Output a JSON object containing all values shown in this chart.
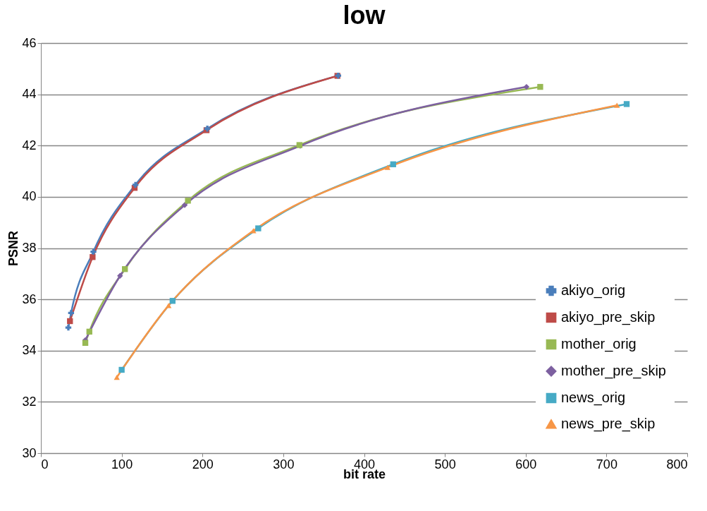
{
  "chart_data": {
    "type": "line",
    "title": "low",
    "xlabel": "bit rate",
    "ylabel": "PSNR",
    "xlim": [
      0,
      800
    ],
    "xticks": [
      0,
      100,
      200,
      300,
      400,
      500,
      600,
      700,
      800
    ],
    "ylim": [
      30,
      46
    ],
    "yticks": [
      30,
      32,
      34,
      36,
      38,
      40,
      42,
      44,
      46
    ],
    "grid": "y",
    "legend": "bottom right",
    "series": [
      {
        "name": "akiyo_orig",
        "color": "#4a7ebb",
        "marker": "cross",
        "x": [
          34,
          37.4,
          65,
          117,
          206,
          368
        ],
        "values": [
          34.9,
          35.47,
          37.86,
          40.47,
          42.66,
          44.73
        ]
      },
      {
        "name": "akiyo_pre_skip",
        "color": "#be4b48",
        "marker": "square",
        "x": [
          36,
          64,
          116,
          205,
          367
        ],
        "values": [
          35.15,
          37.65,
          40.35,
          42.6,
          44.72
        ]
      },
      {
        "name": "mother_orig",
        "color": "#98b954",
        "marker": "square",
        "x": [
          55,
          60,
          104,
          182,
          320,
          618
        ],
        "values": [
          34.3,
          34.74,
          37.18,
          39.85,
          42.02,
          44.29
        ]
      },
      {
        "name": "mother_pre_skip",
        "color": "#7d60a0",
        "marker": "diamond",
        "x": [
          55,
          98,
          178,
          321,
          601
        ],
        "values": [
          34.41,
          36.92,
          39.68,
          41.99,
          44.29
        ]
      },
      {
        "name": "news_orig",
        "color": "#46aac5",
        "marker": "square",
        "x": [
          100,
          163,
          269,
          436,
          725
        ],
        "values": [
          33.25,
          35.94,
          38.77,
          41.27,
          43.62
        ]
      },
      {
        "name": "news_pre_skip",
        "color": "#f79646",
        "marker": "triangle",
        "x": [
          94,
          158,
          263,
          429,
          713
        ],
        "values": [
          32.96,
          35.76,
          38.68,
          41.15,
          43.57
        ]
      }
    ]
  }
}
